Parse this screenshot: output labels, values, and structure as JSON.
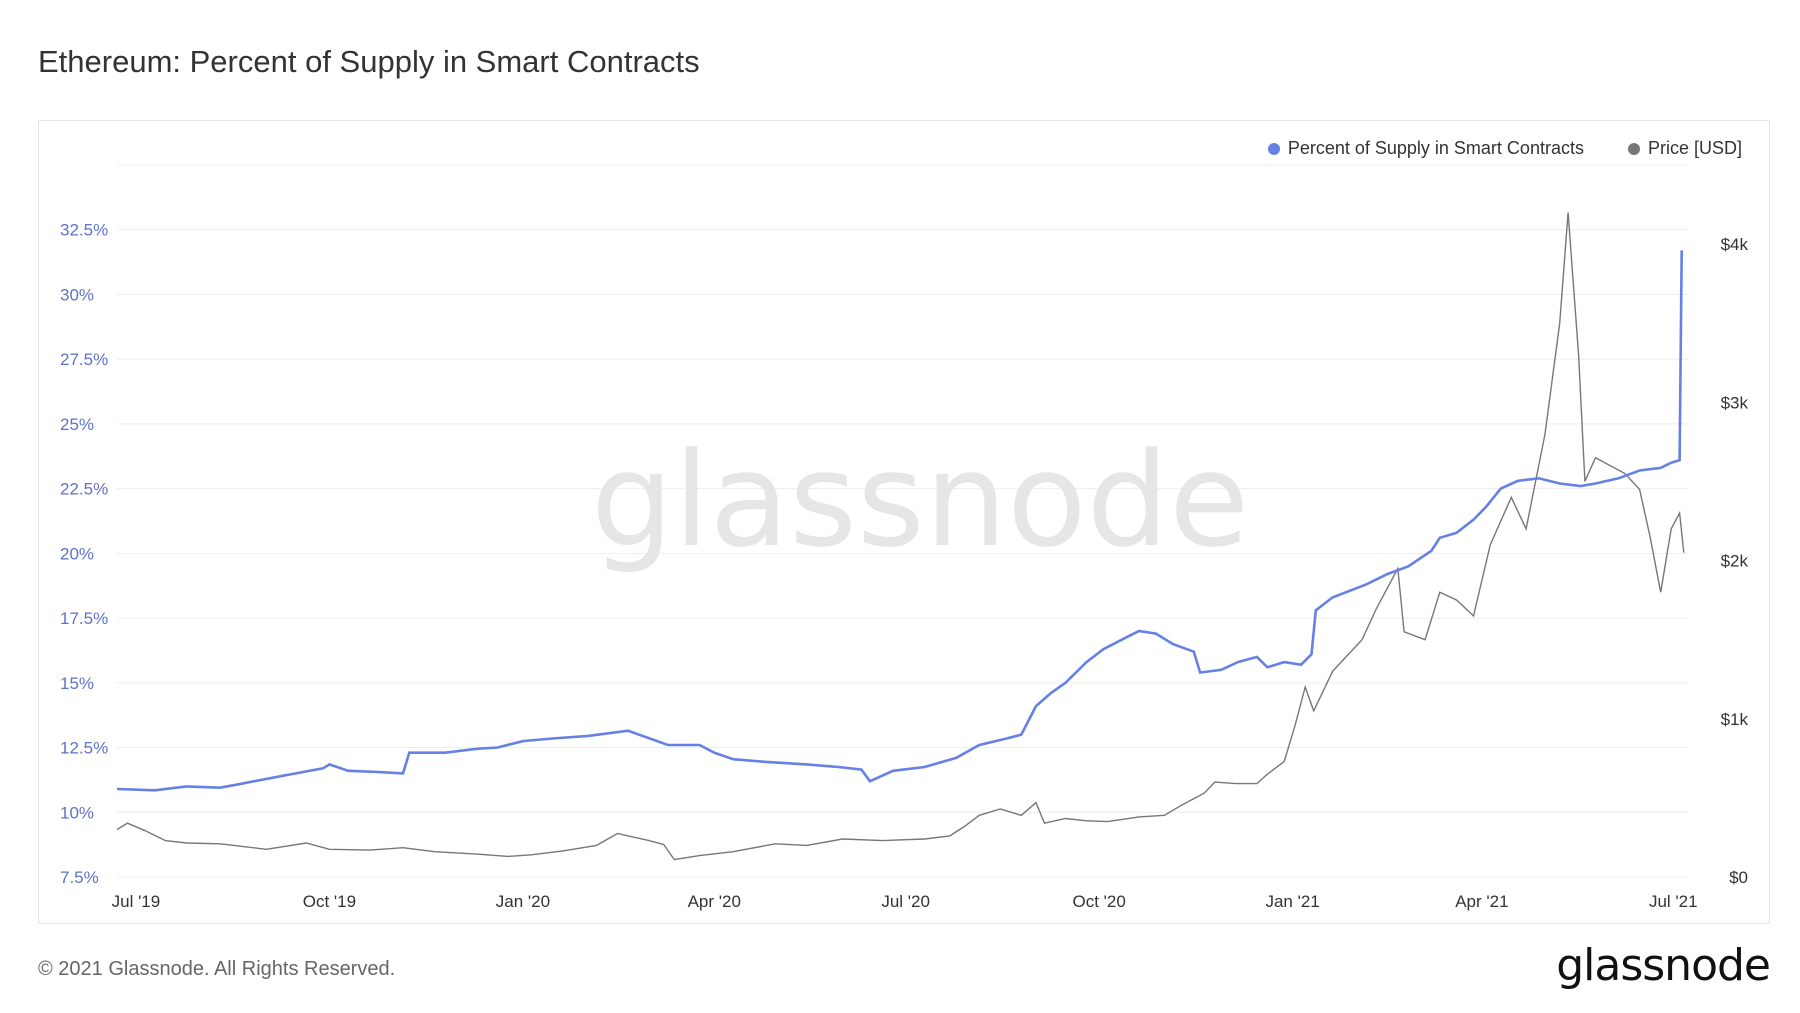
{
  "title": "Ethereum: Percent of Supply in Smart Contracts",
  "watermark": "glassnode",
  "footer": "© 2021 Glassnode. All Rights Reserved.",
  "brand": "glassnode",
  "colors": {
    "percent": "#6780e6",
    "price": "#777777",
    "grid": "#eeeeee",
    "left_axis_text": "#5f72c9"
  },
  "chart_data": {
    "type": "line",
    "legend_position": "top-right",
    "grid": true,
    "x_ticks": [
      "Jul '19",
      "Oct '19",
      "Jan '20",
      "Apr '20",
      "Jul '20",
      "Oct '20",
      "Jan '21",
      "Apr '21",
      "Jul '21"
    ],
    "x_tick_dates": [
      "2019-07-01",
      "2019-10-01",
      "2020-01-01",
      "2020-04-01",
      "2020-07-01",
      "2020-10-01",
      "2021-01-01",
      "2021-04-01",
      "2021-07-01"
    ],
    "xlim": [
      "2019-06-22",
      "2021-07-08"
    ],
    "y_left": {
      "ticks": [
        "7.5%",
        "10%",
        "12.5%",
        "15%",
        "17.5%",
        "20%",
        "22.5%",
        "25%",
        "27.5%",
        "30%",
        "32.5%"
      ],
      "tick_values": [
        7.5,
        10,
        12.5,
        15,
        17.5,
        20,
        22.5,
        25,
        27.5,
        30,
        32.5
      ],
      "lim": [
        7.5,
        35
      ]
    },
    "y_right": {
      "ticks": [
        "$0",
        "$1k",
        "$2k",
        "$3k",
        "$4k"
      ],
      "tick_values": [
        0,
        1000,
        2000,
        3000,
        4000
      ],
      "lim": [
        0,
        4500
      ]
    },
    "series": [
      {
        "name": "Percent of Supply in Smart Contracts",
        "axis": "left",
        "points": [
          [
            "2019-06-22",
            10.9
          ],
          [
            "2019-07-10",
            10.85
          ],
          [
            "2019-07-25",
            11.0
          ],
          [
            "2019-08-10",
            10.95
          ],
          [
            "2019-08-20",
            11.1
          ],
          [
            "2019-09-05",
            11.35
          ],
          [
            "2019-09-15",
            11.5
          ],
          [
            "2019-09-28",
            11.7
          ],
          [
            "2019-10-01",
            11.85
          ],
          [
            "2019-10-10",
            11.6
          ],
          [
            "2019-10-25",
            11.55
          ],
          [
            "2019-11-05",
            11.5
          ],
          [
            "2019-11-08",
            12.3
          ],
          [
            "2019-11-25",
            12.3
          ],
          [
            "2019-12-10",
            12.45
          ],
          [
            "2019-12-20",
            12.5
          ],
          [
            "2020-01-01",
            12.75
          ],
          [
            "2020-01-15",
            12.85
          ],
          [
            "2020-02-01",
            12.95
          ],
          [
            "2020-02-20",
            13.15
          ],
          [
            "2020-03-10",
            12.6
          ],
          [
            "2020-03-25",
            12.6
          ],
          [
            "2020-04-01",
            12.3
          ],
          [
            "2020-04-10",
            12.05
          ],
          [
            "2020-04-25",
            11.95
          ],
          [
            "2020-05-15",
            11.85
          ],
          [
            "2020-05-30",
            11.75
          ],
          [
            "2020-06-10",
            11.65
          ],
          [
            "2020-06-14",
            11.2
          ],
          [
            "2020-06-25",
            11.6
          ],
          [
            "2020-07-10",
            11.75
          ],
          [
            "2020-07-25",
            12.1
          ],
          [
            "2020-08-05",
            12.6
          ],
          [
            "2020-08-18",
            12.85
          ],
          [
            "2020-08-25",
            13.0
          ],
          [
            "2020-09-01",
            14.1
          ],
          [
            "2020-09-08",
            14.6
          ],
          [
            "2020-09-15",
            15.0
          ],
          [
            "2020-09-25",
            15.8
          ],
          [
            "2020-10-03",
            16.3
          ],
          [
            "2020-10-15",
            16.8
          ],
          [
            "2020-10-20",
            17.0
          ],
          [
            "2020-10-28",
            16.9
          ],
          [
            "2020-11-05",
            16.5
          ],
          [
            "2020-11-15",
            16.2
          ],
          [
            "2020-11-18",
            15.4
          ],
          [
            "2020-11-28",
            15.5
          ],
          [
            "2020-12-06",
            15.8
          ],
          [
            "2020-12-15",
            16.0
          ],
          [
            "2020-12-20",
            15.6
          ],
          [
            "2020-12-28",
            15.8
          ],
          [
            "2021-01-05",
            15.7
          ],
          [
            "2021-01-10",
            16.1
          ],
          [
            "2021-01-12",
            17.8
          ],
          [
            "2021-01-20",
            18.3
          ],
          [
            "2021-02-05",
            18.8
          ],
          [
            "2021-02-15",
            19.2
          ],
          [
            "2021-02-25",
            19.5
          ],
          [
            "2021-03-08",
            20.1
          ],
          [
            "2021-03-12",
            20.6
          ],
          [
            "2021-03-20",
            20.8
          ],
          [
            "2021-03-28",
            21.3
          ],
          [
            "2021-04-03",
            21.8
          ],
          [
            "2021-04-10",
            22.5
          ],
          [
            "2021-04-18",
            22.8
          ],
          [
            "2021-04-28",
            22.9
          ],
          [
            "2021-05-08",
            22.7
          ],
          [
            "2021-05-18",
            22.6
          ],
          [
            "2021-05-25",
            22.7
          ],
          [
            "2021-06-05",
            22.9
          ],
          [
            "2021-06-15",
            23.2
          ],
          [
            "2021-06-25",
            23.3
          ],
          [
            "2021-06-30",
            23.5
          ],
          [
            "2021-07-04",
            23.6
          ],
          [
            "2021-07-05",
            31.7
          ]
        ]
      },
      {
        "name": "Price [USD]",
        "axis": "right",
        "points": [
          [
            "2019-06-22",
            300
          ],
          [
            "2019-06-27",
            340
          ],
          [
            "2019-07-05",
            295
          ],
          [
            "2019-07-15",
            230
          ],
          [
            "2019-07-25",
            215
          ],
          [
            "2019-08-10",
            210
          ],
          [
            "2019-09-01",
            175
          ],
          [
            "2019-09-20",
            215
          ],
          [
            "2019-10-01",
            175
          ],
          [
            "2019-10-20",
            170
          ],
          [
            "2019-11-05",
            185
          ],
          [
            "2019-11-20",
            160
          ],
          [
            "2019-12-10",
            145
          ],
          [
            "2019-12-25",
            130
          ],
          [
            "2020-01-05",
            140
          ],
          [
            "2020-01-20",
            165
          ],
          [
            "2020-02-05",
            200
          ],
          [
            "2020-02-15",
            275
          ],
          [
            "2020-03-01",
            230
          ],
          [
            "2020-03-08",
            205
          ],
          [
            "2020-03-13",
            110
          ],
          [
            "2020-03-25",
            135
          ],
          [
            "2020-04-10",
            160
          ],
          [
            "2020-04-30",
            210
          ],
          [
            "2020-05-15",
            200
          ],
          [
            "2020-06-01",
            240
          ],
          [
            "2020-06-20",
            230
          ],
          [
            "2020-07-10",
            240
          ],
          [
            "2020-07-22",
            260
          ],
          [
            "2020-07-29",
            320
          ],
          [
            "2020-08-05",
            390
          ],
          [
            "2020-08-15",
            430
          ],
          [
            "2020-08-25",
            390
          ],
          [
            "2020-09-01",
            470
          ],
          [
            "2020-09-05",
            340
          ],
          [
            "2020-09-15",
            370
          ],
          [
            "2020-09-25",
            355
          ],
          [
            "2020-10-05",
            350
          ],
          [
            "2020-10-20",
            380
          ],
          [
            "2020-11-01",
            390
          ],
          [
            "2020-11-10",
            460
          ],
          [
            "2020-11-20",
            530
          ],
          [
            "2020-11-25",
            600
          ],
          [
            "2020-12-05",
            590
          ],
          [
            "2020-12-15",
            590
          ],
          [
            "2020-12-20",
            650
          ],
          [
            "2020-12-28",
            730
          ],
          [
            "2021-01-02",
            950
          ],
          [
            "2021-01-07",
            1200
          ],
          [
            "2021-01-11",
            1050
          ],
          [
            "2021-01-20",
            1300
          ],
          [
            "2021-02-03",
            1500
          ],
          [
            "2021-02-10",
            1700
          ],
          [
            "2021-02-20",
            1950
          ],
          [
            "2021-02-23",
            1550
          ],
          [
            "2021-03-05",
            1500
          ],
          [
            "2021-03-12",
            1800
          ],
          [
            "2021-03-20",
            1750
          ],
          [
            "2021-03-28",
            1650
          ],
          [
            "2021-04-05",
            2100
          ],
          [
            "2021-04-15",
            2400
          ],
          [
            "2021-04-22",
            2200
          ],
          [
            "2021-05-01",
            2800
          ],
          [
            "2021-05-08",
            3500
          ],
          [
            "2021-05-12",
            4200
          ],
          [
            "2021-05-17",
            3300
          ],
          [
            "2021-05-20",
            2500
          ],
          [
            "2021-05-25",
            2650
          ],
          [
            "2021-06-01",
            2600
          ],
          [
            "2021-06-08",
            2550
          ],
          [
            "2021-06-15",
            2450
          ],
          [
            "2021-06-20",
            2150
          ],
          [
            "2021-06-25",
            1800
          ],
          [
            "2021-06-30",
            2200
          ],
          [
            "2021-07-04",
            2300
          ],
          [
            "2021-07-06",
            2050
          ]
        ]
      }
    ]
  }
}
